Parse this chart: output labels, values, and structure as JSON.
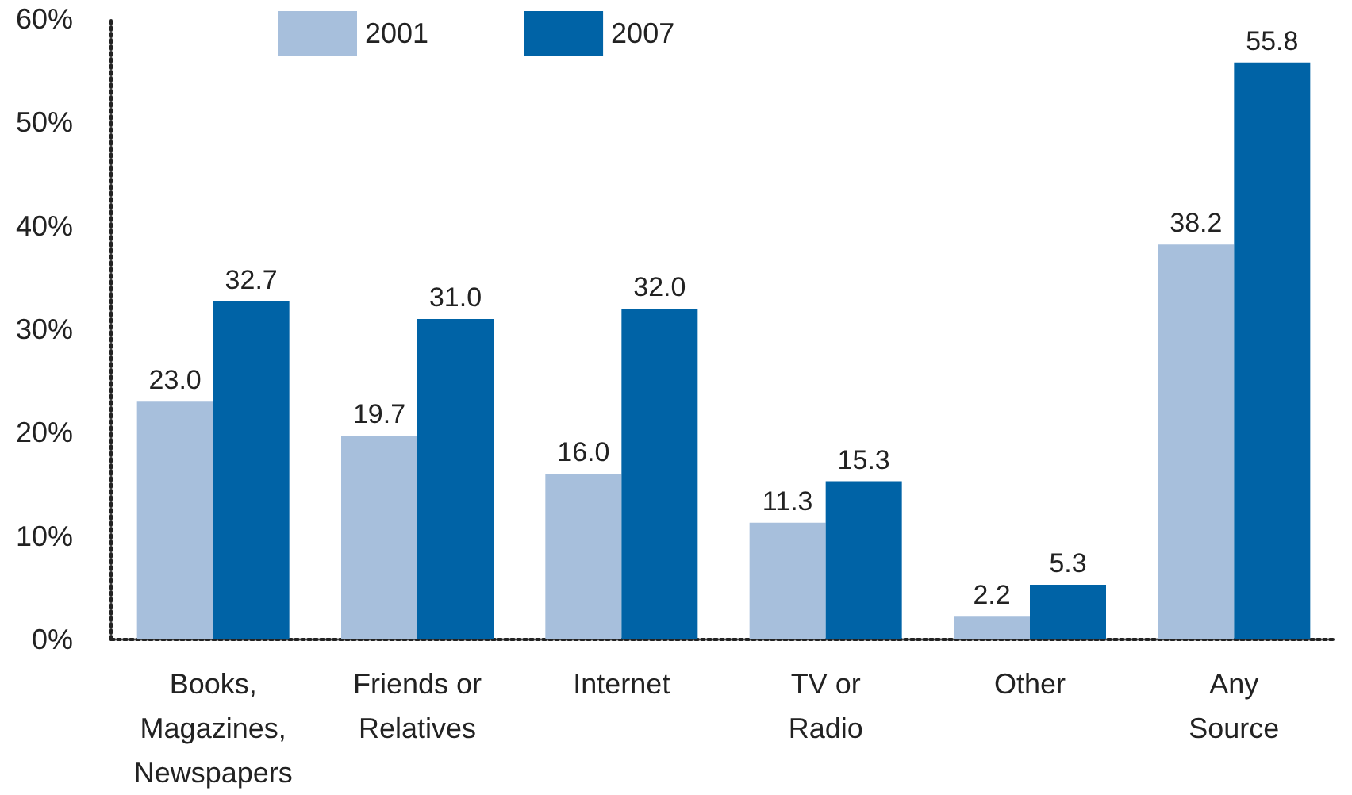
{
  "chart_data": {
    "type": "bar",
    "categories": [
      "Books,\nMagazines,\nNewspapers",
      "Friends or\nRelatives",
      "Internet",
      "TV or\nRadio",
      "Other",
      "Any\nSource"
    ],
    "series": [
      {
        "name": "2001",
        "color": "#a7bfdc",
        "values": [
          23.0,
          19.7,
          16.0,
          11.3,
          2.2,
          38.2
        ],
        "value_labels": [
          "23.0",
          "19.7",
          "16.0",
          "11.3",
          "2.2",
          "38.2"
        ]
      },
      {
        "name": "2007",
        "color": "#0063a6",
        "values": [
          32.7,
          31.0,
          32.0,
          15.3,
          5.3,
          55.8
        ],
        "value_labels": [
          "32.7",
          "31.0",
          "32.0",
          "15.3",
          "5.3",
          "55.8"
        ]
      }
    ],
    "ylim": [
      0,
      60
    ],
    "yticks": [
      {
        "value": 0,
        "label": "0%"
      },
      {
        "value": 10,
        "label": "10%"
      },
      {
        "value": 20,
        "label": "20%"
      },
      {
        "value": 30,
        "label": "30%"
      },
      {
        "value": 40,
        "label": "40%"
      },
      {
        "value": 50,
        "label": "50%"
      },
      {
        "value": 60,
        "label": "60%"
      }
    ],
    "grid": false,
    "legend": "top"
  }
}
